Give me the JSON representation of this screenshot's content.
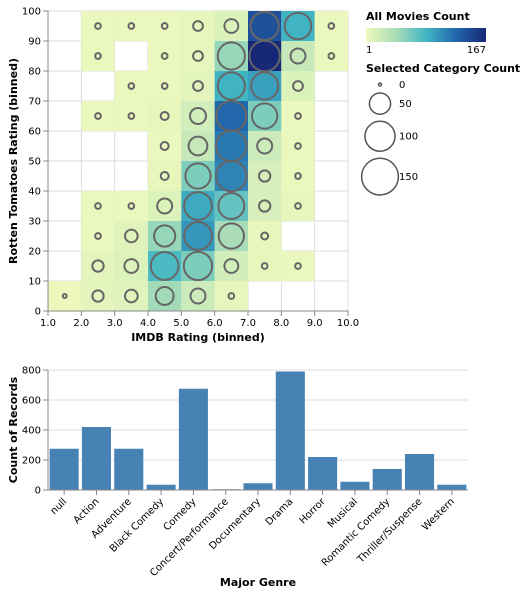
{
  "chart_data": [
    {
      "type": "heatmap",
      "xlabel": "IMDB Rating (binned)",
      "ylabel": "Rotten Tomatoes Rating (binned)",
      "x_ticks": [
        "1.0",
        "2.0",
        "3.0",
        "4.0",
        "5.0",
        "6.0",
        "7.0",
        "8.0",
        "9.0",
        "10.0"
      ],
      "y_ticks": [
        "0",
        "10",
        "20",
        "30",
        "40",
        "50",
        "60",
        "70",
        "80",
        "90",
        "100"
      ],
      "xlim": [
        1,
        10
      ],
      "ylim": [
        0,
        100
      ],
      "grid": true,
      "color_legend": {
        "title": "All Movies Count",
        "min": "1",
        "max": "167"
      },
      "size_legend": {
        "title": "Selected Category Count",
        "values": [
          "0",
          "50",
          "100",
          "150"
        ]
      },
      "colors": {
        "low": "#eff9bd",
        "mid": "#41b6c4",
        "high": "#172976",
        "ring": "#666666",
        "legend_ring": "#555555"
      },
      "cells": [
        {
          "x": 1.0,
          "y": 0,
          "all": 2,
          "selected": 1
        },
        {
          "x": 2.0,
          "y": 0,
          "all": 8,
          "selected": 8
        },
        {
          "x": 3.0,
          "y": 0,
          "all": 10,
          "selected": 10
        },
        {
          "x": 4.0,
          "y": 0,
          "all": 45,
          "selected": 20
        },
        {
          "x": 5.0,
          "y": 0,
          "all": 22,
          "selected": 14
        },
        {
          "x": 6.0,
          "y": 0,
          "all": 6,
          "selected": 2
        },
        {
          "x": 2.0,
          "y": 10,
          "all": 8,
          "selected": 8
        },
        {
          "x": 3.0,
          "y": 10,
          "all": 12,
          "selected": 12
        },
        {
          "x": 4.0,
          "y": 10,
          "all": 80,
          "selected": 48
        },
        {
          "x": 5.0,
          "y": 10,
          "all": 60,
          "selected": 50
        },
        {
          "x": 6.0,
          "y": 10,
          "all": 18,
          "selected": 12
        },
        {
          "x": 7.0,
          "y": 10,
          "all": 5,
          "selected": 2
        },
        {
          "x": 8.0,
          "y": 10,
          "all": 4,
          "selected": 2
        },
        {
          "x": 2.0,
          "y": 20,
          "all": 4,
          "selected": 2
        },
        {
          "x": 3.0,
          "y": 20,
          "all": 10,
          "selected": 10
        },
        {
          "x": 4.0,
          "y": 20,
          "all": 50,
          "selected": 28
        },
        {
          "x": 5.0,
          "y": 20,
          "all": 100,
          "selected": 48
        },
        {
          "x": 6.0,
          "y": 20,
          "all": 42,
          "selected": 40
        },
        {
          "x": 7.0,
          "y": 20,
          "all": 6,
          "selected": 3
        },
        {
          "x": 2.0,
          "y": 30,
          "all": 4,
          "selected": 2
        },
        {
          "x": 3.0,
          "y": 30,
          "all": 4,
          "selected": 2
        },
        {
          "x": 4.0,
          "y": 30,
          "all": 12,
          "selected": 14
        },
        {
          "x": 5.0,
          "y": 30,
          "all": 90,
          "selected": 48
        },
        {
          "x": 6.0,
          "y": 30,
          "all": 70,
          "selected": 42
        },
        {
          "x": 7.0,
          "y": 30,
          "all": 15,
          "selected": 8
        },
        {
          "x": 8.0,
          "y": 30,
          "all": 6,
          "selected": 2
        },
        {
          "x": 4.0,
          "y": 40,
          "all": 5,
          "selected": 4
        },
        {
          "x": 5.0,
          "y": 40,
          "all": 60,
          "selected": 40
        },
        {
          "x": 6.0,
          "y": 40,
          "all": 110,
          "selected": 58
        },
        {
          "x": 7.0,
          "y": 40,
          "all": 15,
          "selected": 8
        },
        {
          "x": 8.0,
          "y": 40,
          "all": 4,
          "selected": 2
        },
        {
          "x": 4.0,
          "y": 50,
          "all": 4,
          "selected": 4
        },
        {
          "x": 5.0,
          "y": 50,
          "all": 25,
          "selected": 22
        },
        {
          "x": 6.0,
          "y": 50,
          "all": 115,
          "selected": 58
        },
        {
          "x": 7.0,
          "y": 50,
          "all": 22,
          "selected": 14
        },
        {
          "x": 8.0,
          "y": 50,
          "all": 4,
          "selected": 2
        },
        {
          "x": 2.0,
          "y": 60,
          "all": 4,
          "selected": 2
        },
        {
          "x": 3.0,
          "y": 60,
          "all": 4,
          "selected": 2
        },
        {
          "x": 4.0,
          "y": 60,
          "all": 5,
          "selected": 4
        },
        {
          "x": 5.0,
          "y": 60,
          "all": 18,
          "selected": 16
        },
        {
          "x": 6.0,
          "y": 60,
          "all": 125,
          "selected": 56
        },
        {
          "x": 7.0,
          "y": 60,
          "all": 60,
          "selected": 40
        },
        {
          "x": 8.0,
          "y": 60,
          "all": 4,
          "selected": 2
        },
        {
          "x": 3.0,
          "y": 70,
          "all": 4,
          "selected": 2
        },
        {
          "x": 4.0,
          "y": 70,
          "all": 4,
          "selected": 2
        },
        {
          "x": 5.0,
          "y": 70,
          "all": 8,
          "selected": 6
        },
        {
          "x": 6.0,
          "y": 70,
          "all": 85,
          "selected": 46
        },
        {
          "x": 7.0,
          "y": 70,
          "all": 95,
          "selected": 46
        },
        {
          "x": 8.0,
          "y": 70,
          "all": 12,
          "selected": 6
        },
        {
          "x": 2.0,
          "y": 80,
          "all": 4,
          "selected": 2
        },
        {
          "x": 4.0,
          "y": 80,
          "all": 4,
          "selected": 2
        },
        {
          "x": 5.0,
          "y": 80,
          "all": 6,
          "selected": 6
        },
        {
          "x": 6.0,
          "y": 80,
          "all": 50,
          "selected": 46
        },
        {
          "x": 7.0,
          "y": 80,
          "all": 167,
          "selected": 58
        },
        {
          "x": 8.0,
          "y": 80,
          "all": 25,
          "selected": 14
        },
        {
          "x": 9.0,
          "y": 80,
          "all": 4,
          "selected": 2
        },
        {
          "x": 2.0,
          "y": 90,
          "all": 4,
          "selected": 2
        },
        {
          "x": 3.0,
          "y": 90,
          "all": 4,
          "selected": 2
        },
        {
          "x": 4.0,
          "y": 90,
          "all": 4,
          "selected": 2
        },
        {
          "x": 5.0,
          "y": 90,
          "all": 6,
          "selected": 6
        },
        {
          "x": 6.0,
          "y": 90,
          "all": 12,
          "selected": 12
        },
        {
          "x": 7.0,
          "y": 90,
          "all": 140,
          "selected": 50
        },
        {
          "x": 8.0,
          "y": 90,
          "all": 85,
          "selected": 44
        },
        {
          "x": 9.0,
          "y": 90,
          "all": 4,
          "selected": 2
        }
      ]
    },
    {
      "type": "bar",
      "xlabel": "Major Genre",
      "ylabel": "Count of Records",
      "categories": [
        "null",
        "Action",
        "Adventure",
        "Black Comedy",
        "Comedy",
        "Concert/Performance",
        "Documentary",
        "Drama",
        "Horror",
        "Musical",
        "Romantic Comedy",
        "Thriller/Suspense",
        "Western"
      ],
      "values": [
        275,
        420,
        275,
        35,
        675,
        5,
        45,
        790,
        220,
        55,
        140,
        240,
        35
      ],
      "y_ticks": [
        "0",
        "200",
        "400",
        "600",
        "800"
      ],
      "ylim": [
        0,
        800
      ],
      "grid": true,
      "colors": {
        "bar": "#4682b4"
      }
    }
  ]
}
